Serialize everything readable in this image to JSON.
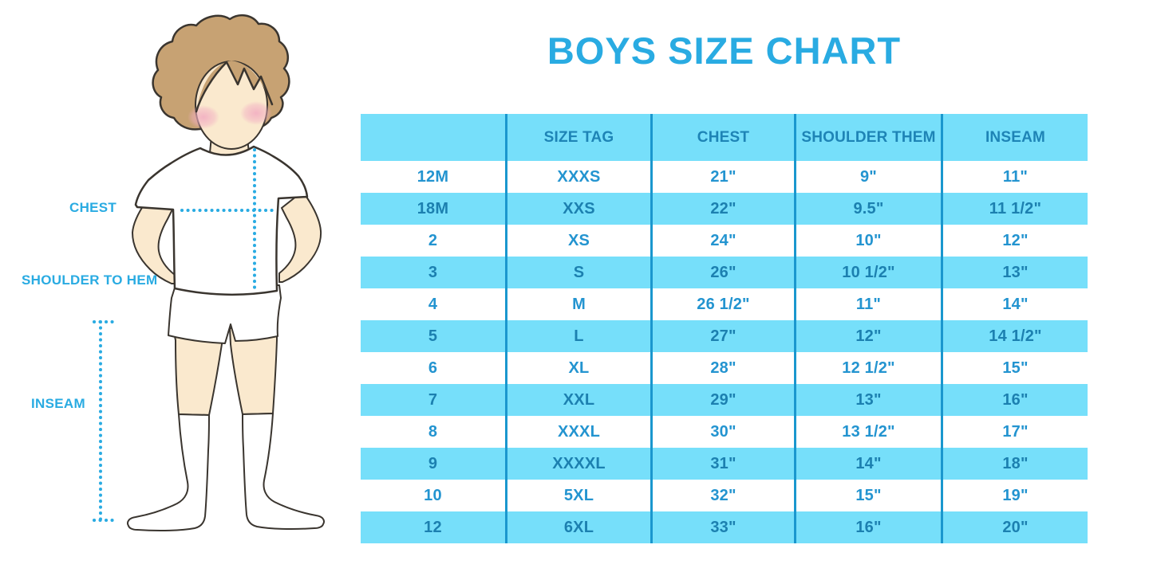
{
  "title": "BOYS SIZE CHART",
  "colors": {
    "accent": "#29ABE2",
    "stripe": "#76DFFA",
    "divider": "#1A97CE",
    "header_text": "#1E84B6",
    "row_text": "#2394D0",
    "row_text_on_stripe": "#1C80B0",
    "skin": "#FAE9CE",
    "hair": "#C7A273",
    "outline": "#3A352F",
    "blush": "#F2AEC2"
  },
  "illustration": {
    "description": "boy in white t-shirt, shorts and knee socks with dotted measurement guides",
    "labels": {
      "chest": "CHEST",
      "shoulder_to_hem": "SHOULDER TO HEM",
      "inseam": "INSEAM"
    }
  },
  "chart_data": {
    "type": "table",
    "title": "BOYS SIZE CHART",
    "columns": [
      "",
      "SIZE TAG",
      "CHEST",
      "SHOULDER THEM",
      "INSEAM"
    ],
    "rows": [
      [
        "12M",
        "XXXS",
        "21\"",
        "9\"",
        "11\""
      ],
      [
        "18M",
        "XXS",
        "22\"",
        "9.5\"",
        "11 1/2\""
      ],
      [
        "2",
        "XS",
        "24\"",
        "10\"",
        "12\""
      ],
      [
        "3",
        "S",
        "26\"",
        "10 1/2\"",
        "13\""
      ],
      [
        "4",
        "M",
        "26 1/2\"",
        "11\"",
        "14\""
      ],
      [
        "5",
        "L",
        "27\"",
        "12\"",
        "14 1/2\""
      ],
      [
        "6",
        "XL",
        "28\"",
        "12 1/2\"",
        "15\""
      ],
      [
        "7",
        "XXL",
        "29\"",
        "13\"",
        "16\""
      ],
      [
        "8",
        "XXXL",
        "30\"",
        "13 1/2\"",
        "17\""
      ],
      [
        "9",
        "XXXXL",
        "31\"",
        "14\"",
        "18\""
      ],
      [
        "10",
        "5XL",
        "32\"",
        "15\"",
        "19\""
      ],
      [
        "12",
        "6XL",
        "33\"",
        "16\"",
        "20\""
      ]
    ],
    "layout": {
      "header_striped": true,
      "striped_data_rows": [
        2,
        4,
        6,
        8,
        10,
        12
      ],
      "grid": "vertical dividers only"
    }
  }
}
